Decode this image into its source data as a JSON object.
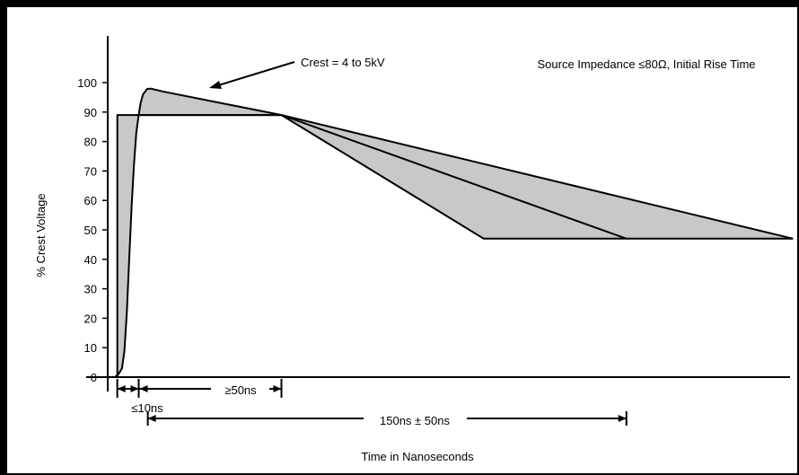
{
  "chart_data": {
    "type": "line",
    "title": "",
    "subtitle": "Source Impedance ≤80Ω, Initial Rise Time",
    "xlabel": "Time in Nanoseconds",
    "ylabel": "% Crest Voltage",
    "ylim": [
      0,
      110
    ],
    "y_ticks": [
      0,
      10,
      20,
      30,
      40,
      50,
      60,
      70,
      80,
      90,
      100
    ],
    "grid": false,
    "fill_color": "#c8c8c8",
    "line_color": "#000000",
    "annotations": {
      "crest": "Crest = 4 to 5kV",
      "rise_time": "≤10ns",
      "plateau": "≥50ns",
      "decay": "150ns ± 50ns"
    },
    "series": [
      {
        "values": [
          [
            0,
            0
          ],
          [
            1.5,
            1
          ],
          [
            3,
            3
          ],
          [
            4,
            9
          ],
          [
            5,
            22
          ],
          [
            6,
            40
          ],
          [
            7,
            58
          ],
          [
            8,
            72
          ],
          [
            9,
            83
          ],
          [
            10,
            89
          ],
          [
            10.8,
            93
          ],
          [
            11.8,
            96
          ],
          [
            13.5,
            97.8
          ],
          [
            15,
            98
          ],
          [
            20,
            97
          ],
          [
            45,
            93
          ],
          [
            70,
            89
          ],
          [
            155,
            47
          ],
          [
            215,
            47
          ],
          [
            285,
            47
          ]
        ]
      },
      {
        "values": [
          [
            9,
            89
          ],
          [
            70,
            89
          ],
          [
            215,
            47
          ]
        ]
      },
      {
        "values": [
          [
            70,
            89
          ],
          [
            285,
            47
          ]
        ]
      }
    ],
    "ideal_envelope": [
      [
        1,
        0
      ],
      [
        1,
        89
      ],
      [
        70,
        89
      ]
    ]
  }
}
